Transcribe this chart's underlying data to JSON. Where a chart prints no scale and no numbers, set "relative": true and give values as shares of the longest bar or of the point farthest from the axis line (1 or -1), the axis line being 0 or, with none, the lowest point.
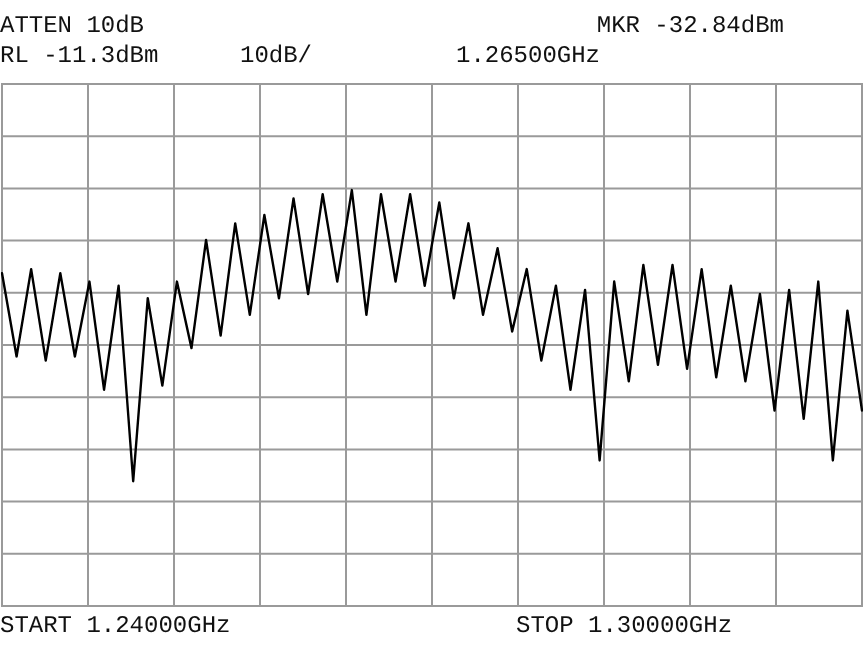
{
  "chart_data": {
    "type": "line",
    "relative": true,
    "annotations": [
      "ATTEN 10dB",
      "MKR -32.84dBm",
      "RL -11.3dBm",
      "10dB/",
      "1.26500GHz",
      "START 1.24000GHz",
      "STOP 1.30000GHz"
    ],
    "categories": [
      null,
      null,
      null,
      null,
      null,
      null,
      null,
      null,
      null,
      null,
      null,
      null,
      null,
      null,
      null,
      null,
      null,
      null,
      null,
      null,
      null,
      null,
      null,
      null,
      null,
      null,
      null,
      null,
      null,
      null,
      null,
      null,
      null,
      null,
      null,
      null,
      null,
      null,
      null,
      null,
      null,
      null,
      null,
      null,
      null,
      null,
      null,
      null,
      null,
      null,
      null,
      null,
      null,
      null,
      null,
      null,
      null,
      null,
      null,
      null
    ],
    "series": [
      {
        "color": "#000000",
        "values": [
          0.8,
          0.6,
          0.81,
          0.59,
          0.8,
          0.6,
          0.78,
          0.52,
          0.77,
          0.3,
          0.74,
          0.53,
          0.78,
          0.62,
          0.88,
          0.65,
          0.92,
          0.7,
          0.94,
          0.74,
          0.98,
          0.75,
          0.99,
          0.78,
          1,
          0.7,
          0.99,
          0.78,
          0.99,
          0.77,
          0.97,
          0.74,
          0.92,
          0.7,
          0.86,
          0.66,
          0.81,
          0.59,
          0.77,
          0.52,
          0.76,
          0.35,
          0.78,
          0.54,
          0.82,
          0.58,
          0.82,
          0.57,
          0.81,
          0.55,
          0.77,
          0.54,
          0.75,
          0.47,
          0.76,
          0.45,
          0.78,
          0.35,
          0.71,
          0.47
        ]
      }
    ],
    "grid": true,
    "legend": false,
    "marker": "none",
    "line_style": "solid"
  }
}
